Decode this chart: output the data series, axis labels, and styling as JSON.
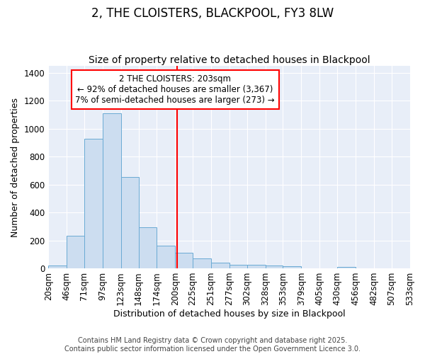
{
  "title": "2, THE CLOISTERS, BLACKPOOL, FY3 8LW",
  "subtitle": "Size of property relative to detached houses in Blackpool",
  "xlabel": "Distribution of detached houses by size in Blackpool",
  "ylabel": "Number of detached properties",
  "bar_color": "#ccddf0",
  "bar_edge_color": "#6aaad4",
  "background_color": "#e8eef8",
  "grid_color": "#ffffff",
  "bin_edges": [
    20,
    46,
    71,
    97,
    123,
    148,
    174,
    200,
    225,
    251,
    277,
    302,
    328,
    353,
    379,
    405,
    430,
    456,
    482,
    507,
    533
  ],
  "bar_heights": [
    18,
    232,
    930,
    1110,
    655,
    295,
    160,
    112,
    72,
    40,
    25,
    24,
    20,
    15,
    0,
    0,
    10,
    0,
    0,
    0
  ],
  "red_line_x": 203,
  "ylim": [
    0,
    1450
  ],
  "xlim": [
    20,
    533
  ],
  "annotation_line1": "2 THE CLOISTERS: 203sqm",
  "annotation_line2": "← 92% of detached houses are smaller (3,367)",
  "annotation_line3": "7% of semi-detached houses are larger (273) →",
  "footnote": "Contains HM Land Registry data © Crown copyright and database right 2025.\nContains public sector information licensed under the Open Government Licence 3.0.",
  "title_fontsize": 12,
  "subtitle_fontsize": 10,
  "axis_label_fontsize": 9,
  "tick_fontsize": 8.5,
  "annotation_fontsize": 8.5,
  "footnote_fontsize": 7
}
